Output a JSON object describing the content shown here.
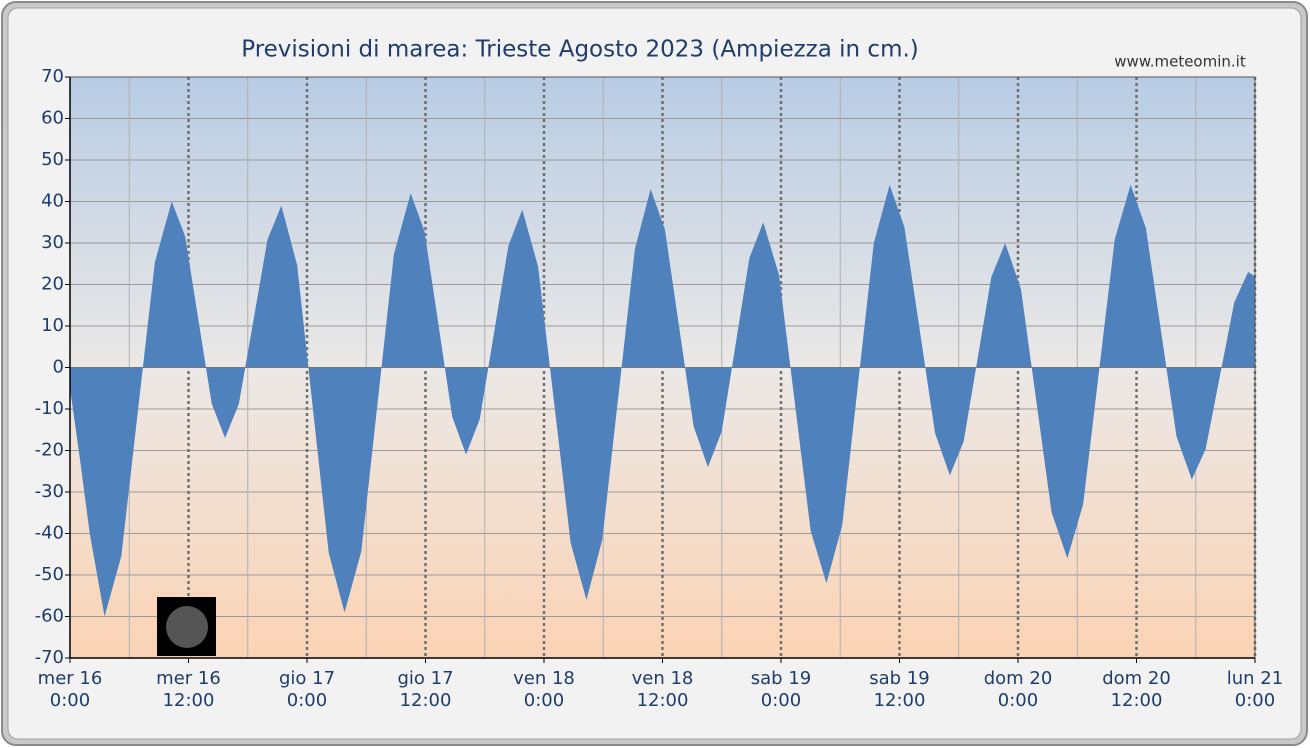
{
  "chart_data": {
    "type": "area",
    "title": "Previsioni di marea: Trieste Agosto 2023 (Ampiezza in cm.)",
    "source": "www.meteomin.it",
    "color": "#4f81bd",
    "x": [
      0,
      1,
      2,
      3.5,
      5.2,
      6.9,
      8.6,
      10.3,
      11.65,
      13.0,
      14.35,
      15.7,
      17.1,
      18.55,
      20.0,
      21.4,
      23.0,
      24.6,
      26.2,
      27.8,
      29.5,
      31.15,
      32.8,
      34.5,
      35.9,
      37.3,
      38.7,
      40.1,
      41.5,
      42.95,
      44.4,
      45.8,
      47.4,
      49.05,
      50.7,
      52.3,
      53.9,
      55.55,
      57.2,
      58.8,
      60.25,
      61.7,
      63.15,
      64.6,
      66.0,
      67.4,
      68.8,
      70.2,
      71.8,
      73.4,
      75.0,
      76.6,
      78.2,
      79.8,
      81.4,
      83.0,
      84.5,
      86.05,
      87.6,
      89.1,
      90.5,
      91.9,
      93.3,
      94.7,
      96.3,
      97.85,
      99.4,
      101.0,
      102.6,
      104.2,
      105.8,
      107.4,
      108.95,
      110.5,
      112.05,
      113.6,
      115.0,
      116.45,
      117.9,
      119.3,
      120
    ],
    "values": [
      -5,
      -22,
      -40,
      -60,
      -45.4,
      -10,
      25.4,
      40,
      31.7,
      11.5,
      -8.7,
      -17,
      -8.8,
      11,
      30.8,
      39,
      24.7,
      -10,
      -44.7,
      -59,
      -44.3,
      -8.5,
      27.3,
      42,
      32.8,
      10.5,
      -11.8,
      -21,
      -12.4,
      8.5,
      29.4,
      38,
      24.3,
      -9,
      -42.3,
      -56,
      -41.5,
      -6.5,
      28.5,
      43,
      33.2,
      9.5,
      -14.2,
      -24,
      -15.4,
      5.5,
      26.4,
      35,
      22.3,
      -8.5,
      -39.3,
      -52,
      -38,
      -4,
      30,
      44,
      33.8,
      9,
      -15.8,
      -26,
      -17.8,
      2,
      21.8,
      30,
      18.9,
      -8,
      -34.9,
      -46,
      -32.9,
      -1,
      30.9,
      44,
      33.6,
      8.5,
      -16.6,
      -27,
      -19.7,
      -2,
      15.7,
      23,
      22
    ],
    "xlim": [
      0,
      120
    ],
    "xticks": [
      {
        "value": 0,
        "label": [
          "mer  16",
          "0:00"
        ]
      },
      {
        "value": 12,
        "label": [
          "mer  16",
          "12:00"
        ]
      },
      {
        "value": 24,
        "label": [
          "gio  17",
          "0:00"
        ]
      },
      {
        "value": 36,
        "label": [
          "gio  17",
          "12:00"
        ]
      },
      {
        "value": 48,
        "label": [
          "ven  18",
          "0:00"
        ]
      },
      {
        "value": 60,
        "label": [
          "ven  18",
          "12:00"
        ]
      },
      {
        "value": 72,
        "label": [
          "sab  19",
          "0:00"
        ]
      },
      {
        "value": 84,
        "label": [
          "sab  19",
          "12:00"
        ]
      },
      {
        "value": 96,
        "label": [
          "dom  20",
          "0:00"
        ]
      },
      {
        "value": 108,
        "label": [
          "dom  20",
          "12:00"
        ]
      },
      {
        "value": 120,
        "label": [
          "lun  21",
          "0:00"
        ]
      }
    ],
    "xminorticks": [
      6,
      18,
      30,
      42,
      54,
      66,
      78,
      90,
      102,
      114
    ],
    "ylim": [
      -70,
      70
    ],
    "yticks": [
      -70,
      -60,
      -50,
      -40,
      -30,
      -20,
      -10,
      0,
      10,
      20,
      30,
      40,
      50,
      60,
      70
    ],
    "grid": true
  }
}
